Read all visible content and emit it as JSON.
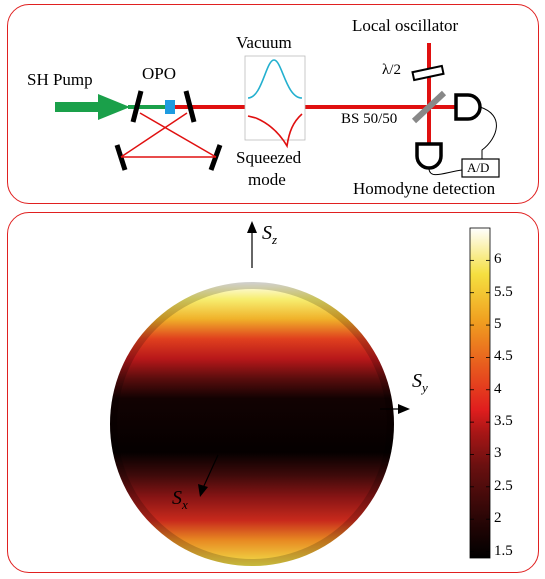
{
  "setup": {
    "sh_pump": "SH Pump",
    "opo": "OPO",
    "vacuum": "Vacuum",
    "squeezed_line1": "Squeezed",
    "squeezed_line2": "mode",
    "local_oscillator": "Local oscillator",
    "half_wave": "λ/2",
    "beam_splitter": "BS 50/50",
    "ad": "A/D",
    "homodyne": "Homodyne detection",
    "colors": {
      "panel_border": "#e02020",
      "pump_beam": "#1aa04a",
      "laser_beam": "#e01010",
      "crystal": "#1e9be0",
      "vacuum_curve": "#23b0cf",
      "squeezed_curve": "#e01010"
    }
  },
  "sphere": {
    "axis_z_base": "S",
    "axis_z_sub": "z",
    "axis_y_base": "S",
    "axis_y_sub": "y",
    "axis_x_base": "S",
    "axis_x_sub": "x",
    "colormap": [
      "#000000",
      "#3a0a0a",
      "#8e1414",
      "#d81e1e",
      "#e85a1e",
      "#f0a020",
      "#f5e040",
      "#ffffff"
    ],
    "colorbar_ticks": [
      "6",
      "5.5",
      "5",
      "4.5",
      "4",
      "3.5",
      "3",
      "2.5",
      "2",
      "1.5"
    ],
    "colorbar_range": [
      1.4,
      6.5
    ]
  }
}
